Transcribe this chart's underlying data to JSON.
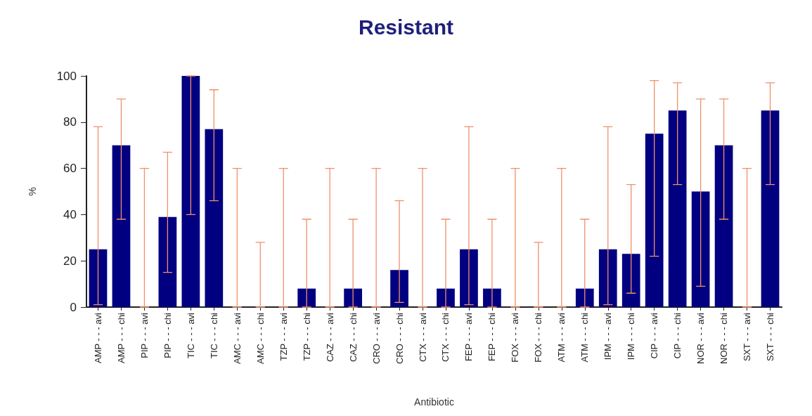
{
  "chart_data": {
    "type": "bar",
    "title": "Resistant",
    "xlabel": "Antibiotic",
    "ylabel": "%",
    "categories": [
      "AMP - - - avi",
      "AMP - - - chi",
      "PIP - - - avi",
      "PIP - - - chi",
      "TIC - - - avi",
      "TIC - - - chi",
      "AMC - - - avi",
      "AMC - - - chi",
      "TZP - - - avi",
      "TZP - - - chi",
      "CAZ - - - avi",
      "CAZ - - - chi",
      "CRO - - - avi",
      "CRO - - - chi",
      "CTX - - - avi",
      "CTX - - - chi",
      "FEP - - - avi",
      "FEP - - - chi",
      "FOX - - - avi",
      "FOX - - - chi",
      "ATM - - - avi",
      "ATM - - - chi",
      "IPM - - - avi",
      "IPM - - - chi",
      "CIP - - - avi",
      "CIP - - - chi",
      "NOR - - - avi",
      "NOR - - - chi",
      "SXT - - - avi",
      "SXT - - - chi"
    ],
    "values": [
      25,
      70,
      0,
      39,
      100,
      77,
      0,
      0,
      0,
      8,
      0,
      8,
      0,
      16,
      0,
      8,
      25,
      8,
      0,
      0,
      0,
      8,
      25,
      23,
      75,
      85,
      50,
      70,
      0,
      85
    ],
    "errors": [
      [
        1,
        78
      ],
      [
        38,
        90
      ],
      [
        0,
        60
      ],
      [
        15,
        67
      ],
      [
        40,
        100
      ],
      [
        46,
        94
      ],
      [
        0,
        60
      ],
      [
        0,
        28
      ],
      [
        0,
        60
      ],
      [
        0,
        38
      ],
      [
        0,
        60
      ],
      [
        0,
        38
      ],
      [
        0,
        60
      ],
      [
        2,
        46
      ],
      [
        0,
        60
      ],
      [
        0,
        38
      ],
      [
        1,
        78
      ],
      [
        0,
        38
      ],
      [
        0,
        60
      ],
      [
        0,
        28
      ],
      [
        0,
        60
      ],
      [
        0,
        38
      ],
      [
        1,
        78
      ],
      [
        6,
        53
      ],
      [
        22,
        98
      ],
      [
        53,
        97
      ],
      [
        9,
        90
      ],
      [
        38,
        90
      ],
      [
        0,
        60
      ],
      [
        53,
        97
      ]
    ],
    "color": "#000080",
    "ylim": [
      0,
      100
    ],
    "yticks": [
      0,
      20,
      40,
      60,
      80,
      100
    ],
    "grid": false
  }
}
